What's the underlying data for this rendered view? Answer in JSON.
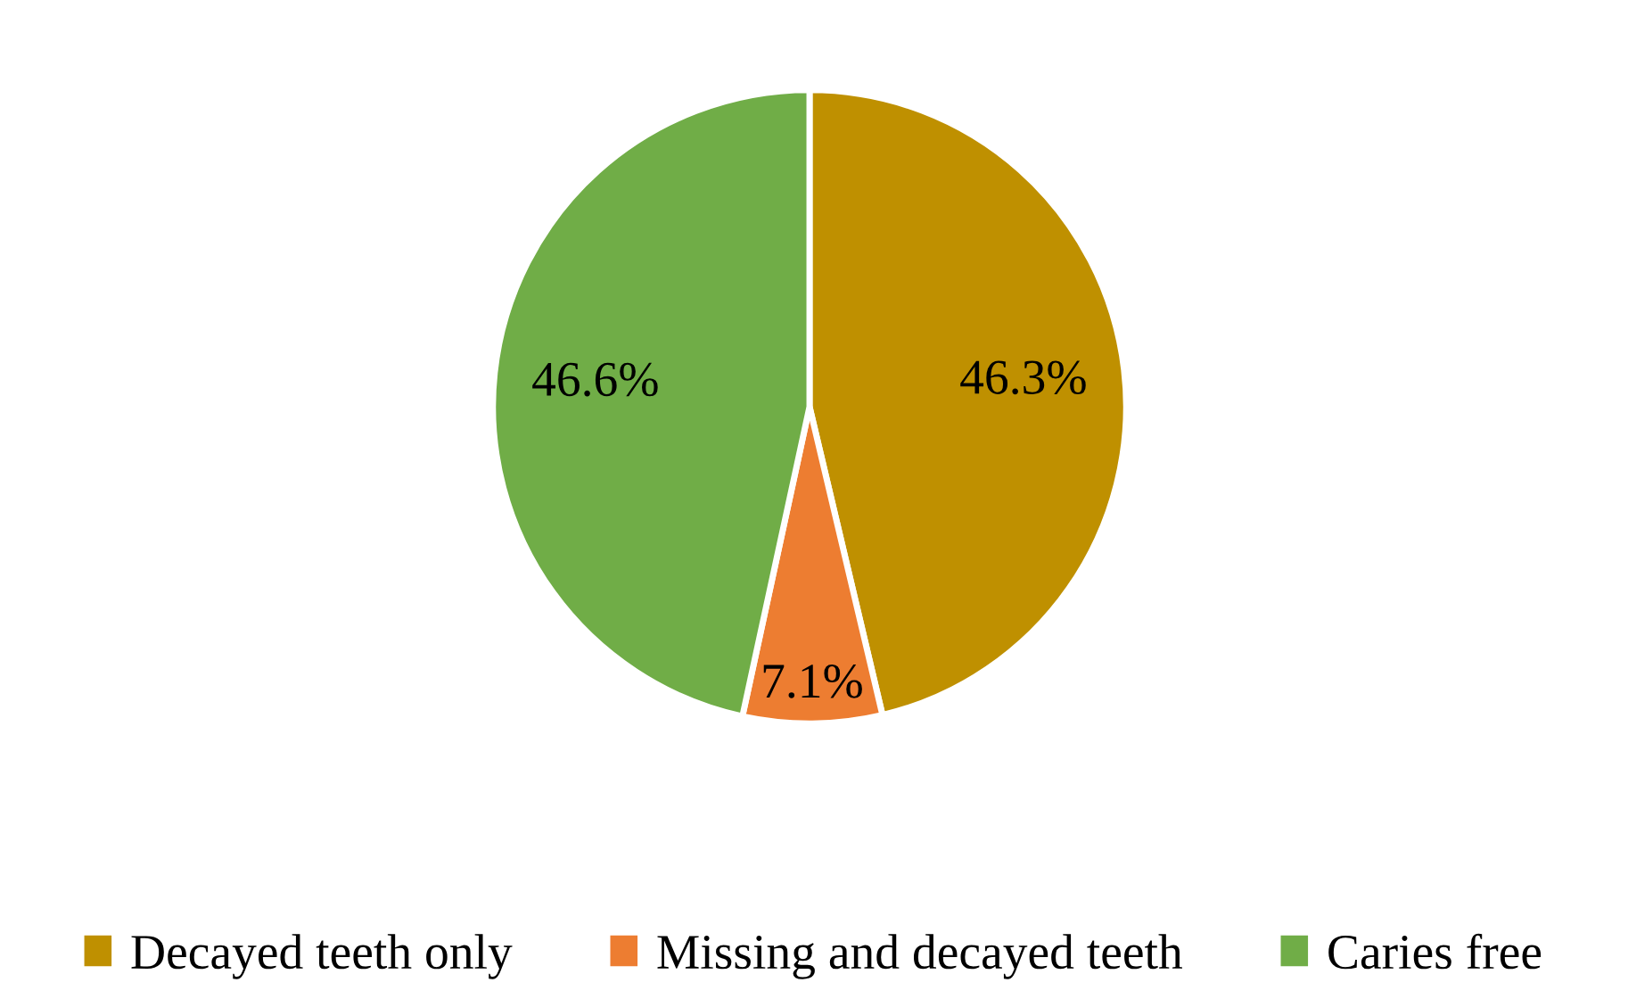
{
  "chart_data": {
    "type": "pie",
    "categories": [
      "Decayed teeth only",
      "Missing and decayed teeth",
      "Caries free"
    ],
    "values": [
      46.3,
      7.1,
      46.6
    ],
    "colors": [
      "#bf9000",
      "#ed7d31",
      "#70ad47"
    ],
    "value_labels": [
      "46.3%",
      "7.1%",
      "46.6%"
    ],
    "legend": "bottom"
  }
}
